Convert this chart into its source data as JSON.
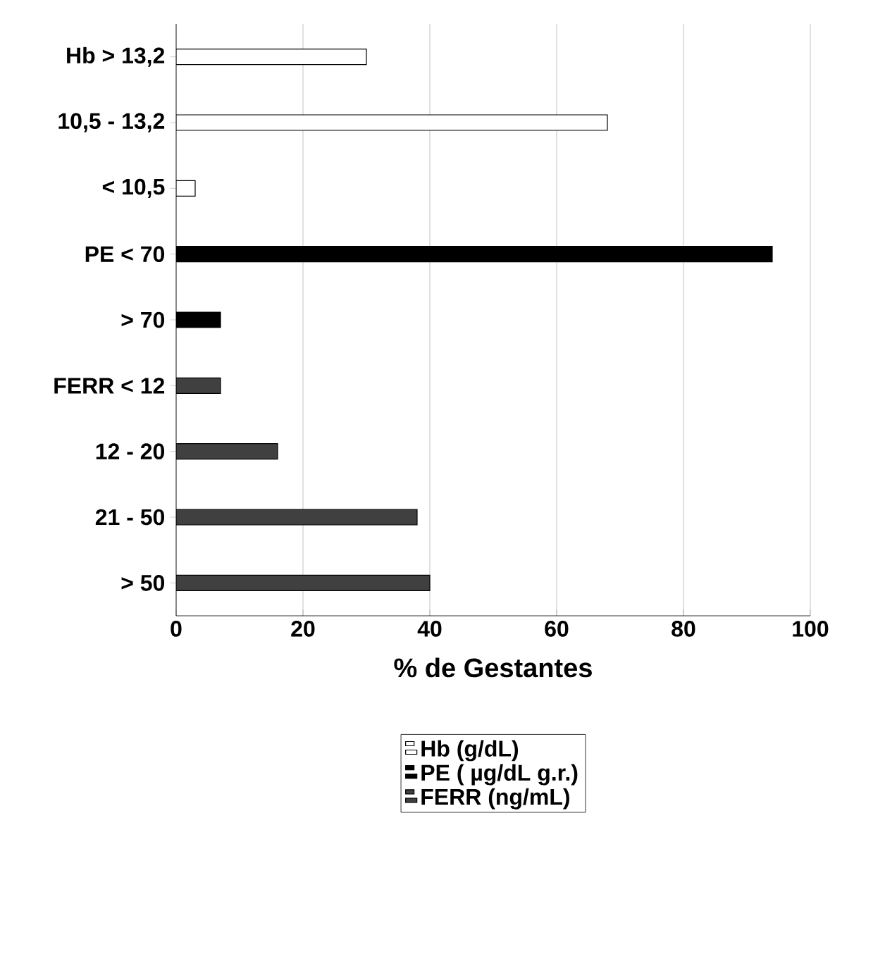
{
  "chart_data": {
    "type": "bar",
    "orientation": "horizontal",
    "xlabel": "% de Gestantes",
    "categories": [
      "Hb > 13,2",
      "10,5 - 13,2",
      "< 10,5",
      "PE < 70",
      "> 70",
      "FERR < 12",
      "12 - 20",
      "21 - 50",
      "> 50"
    ],
    "series": [
      {
        "name": "Hb (g/dL)",
        "color": "#ffffff",
        "values": [
          30,
          68,
          3,
          null,
          null,
          null,
          null,
          null,
          null
        ]
      },
      {
        "name": "PE ( µg/dL g.r.)",
        "color": "#000000",
        "values": [
          null,
          null,
          null,
          94,
          7,
          null,
          null,
          null,
          null
        ]
      },
      {
        "name": "FERR (ng/mL)",
        "color": "#404040",
        "values": [
          null,
          null,
          null,
          null,
          null,
          7,
          16,
          38,
          40
        ]
      }
    ],
    "xlim": [
      0,
      100
    ],
    "xticks": [
      0,
      20,
      40,
      60,
      80,
      100
    ],
    "grid": "x",
    "legend": "bottom"
  }
}
